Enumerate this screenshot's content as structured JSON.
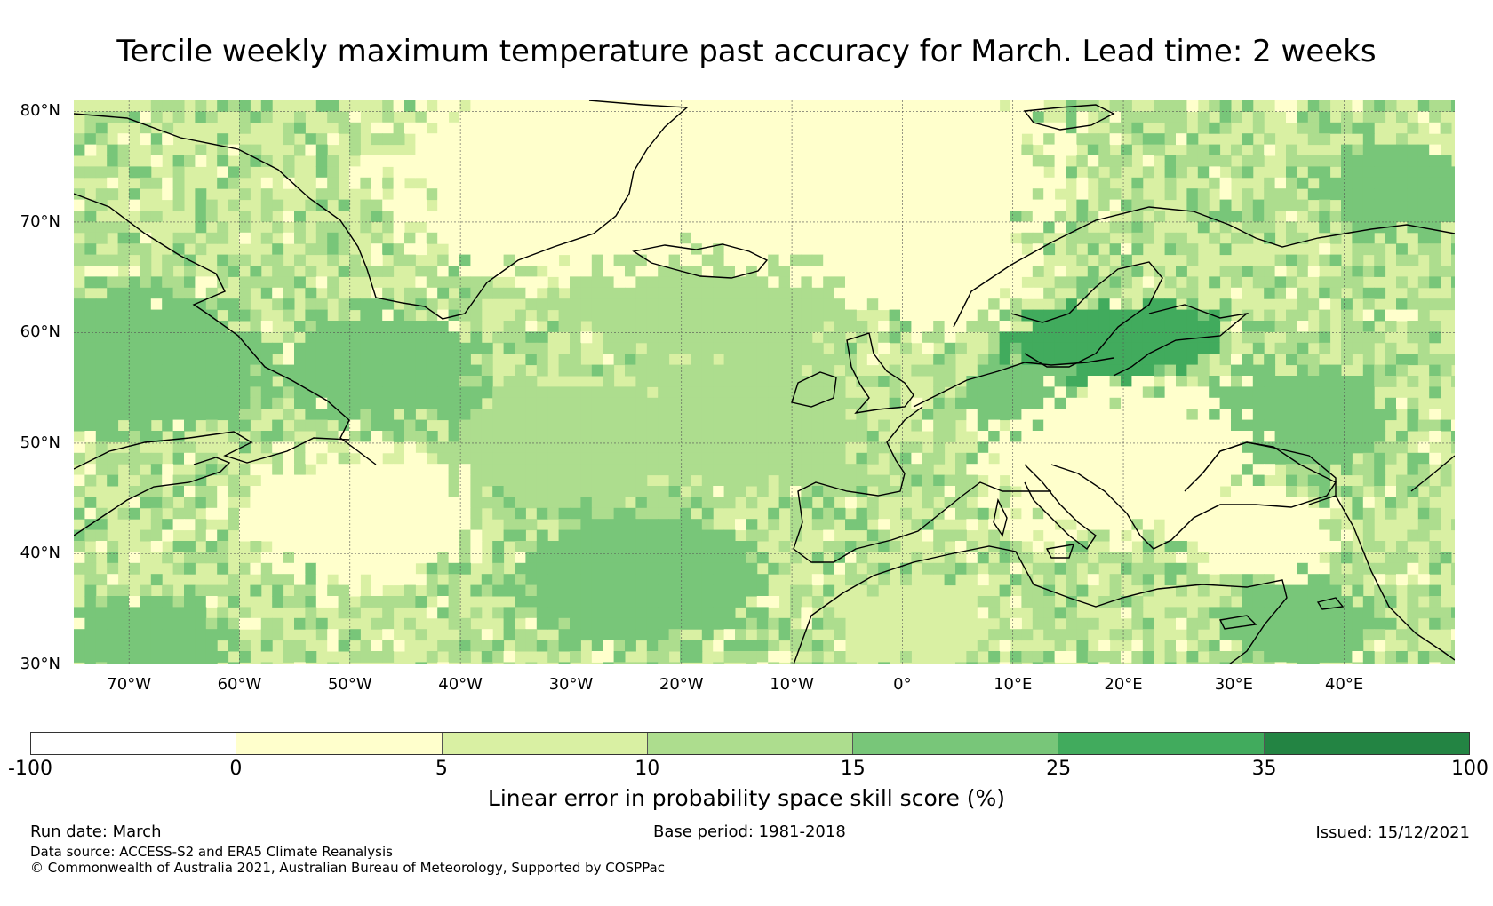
{
  "title": "Tercile weekly maximum temperature past accuracy for March. Lead time: 2 weeks",
  "map": {
    "extent": {
      "lon_min": -75,
      "lon_max": 50,
      "lat_min": 30,
      "lat_max": 81
    },
    "lat_ticks": [
      {
        "value": 80,
        "label": "80°N"
      },
      {
        "value": 70,
        "label": "70°N"
      },
      {
        "value": 60,
        "label": "60°N"
      },
      {
        "value": 50,
        "label": "50°N"
      },
      {
        "value": 40,
        "label": "40°N"
      },
      {
        "value": 30,
        "label": "30°N"
      }
    ],
    "lon_ticks": [
      {
        "value": -70,
        "label": "70°W"
      },
      {
        "value": -60,
        "label": "60°W"
      },
      {
        "value": -50,
        "label": "50°W"
      },
      {
        "value": -40,
        "label": "40°W"
      },
      {
        "value": -30,
        "label": "30°W"
      },
      {
        "value": -20,
        "label": "20°W"
      },
      {
        "value": -10,
        "label": "10°W"
      },
      {
        "value": 0,
        "label": "0°"
      },
      {
        "value": 10,
        "label": "10°E"
      },
      {
        "value": 20,
        "label": "20°E"
      },
      {
        "value": 30,
        "label": "30°E"
      },
      {
        "value": 40,
        "label": "40°E"
      }
    ],
    "skill_field_bins": [
      {
        "range": "0-5",
        "color": "#ffffcc"
      },
      {
        "range": "5-10",
        "color": "#d9f0a3"
      },
      {
        "range": "10-15",
        "color": "#addd8e"
      },
      {
        "range": "15-25",
        "color": "#78c679"
      },
      {
        "range": "25-35",
        "color": "#41ab5d"
      }
    ]
  },
  "colorbar": {
    "bins": [
      {
        "from": -100,
        "to": 0,
        "color": "#ffffff"
      },
      {
        "from": 0,
        "to": 5,
        "color": "#ffffcc"
      },
      {
        "from": 5,
        "to": 10,
        "color": "#d9f0a3"
      },
      {
        "from": 10,
        "to": 15,
        "color": "#addd8e"
      },
      {
        "from": 15,
        "to": 25,
        "color": "#78c679"
      },
      {
        "from": 25,
        "to": 35,
        "color": "#41ab5d"
      },
      {
        "from": 35,
        "to": 100,
        "color": "#238443"
      }
    ],
    "tick_labels": [
      "-100",
      "0",
      "5",
      "10",
      "15",
      "25",
      "35",
      "100"
    ],
    "label": "Linear error in probability space skill score (%)"
  },
  "footer": {
    "run_date": "Run date: March",
    "base_period": "Base period: 1981-2018",
    "issued": "Issued: 15/12/2021",
    "data_source": "Data source: ACCESS-S2 and ERA5 Climate Reanalysis",
    "copyright": "© Commonwealth of Australia 2021, Australian Bureau of Meteorology, Supported by COSPPac"
  }
}
